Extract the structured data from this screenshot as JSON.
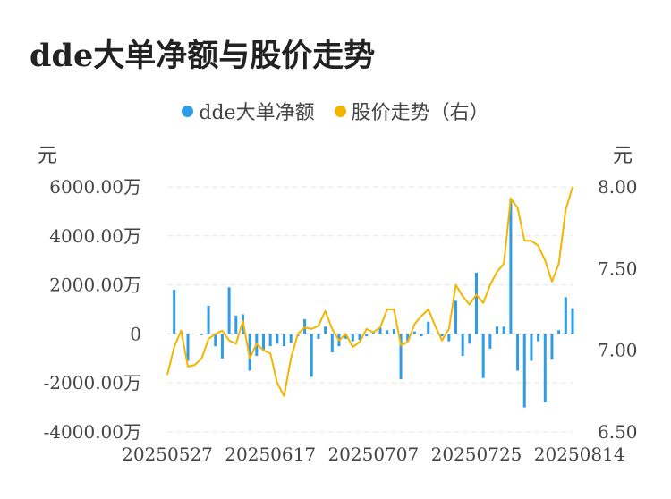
{
  "page_title": "dde大单净额与股价走势",
  "legend": [
    {
      "label": "dde大单净额",
      "color": "#2e9ce6"
    },
    {
      "label": "股价走势（右）",
      "color": "#f4b400"
    }
  ],
  "left_unit": "元",
  "right_unit": "元",
  "chart_data": {
    "type": "bar+line",
    "title": "dde大单净额与股价走势",
    "x_tick_labels": [
      "20250527",
      "20250617",
      "20250707",
      "20250725",
      "20250814"
    ],
    "x_tick_indices": [
      0,
      15,
      30,
      45,
      60
    ],
    "y_left": {
      "ylim": [
        -4000,
        6000
      ],
      "unit": "万",
      "tick_values": [
        -4000,
        -2000,
        0,
        2000,
        4000,
        6000
      ],
      "tick_labels": [
        "-4000.00万",
        "-2000.00万",
        "0",
        "2000.00万",
        "4000.00万",
        "6000.00万"
      ]
    },
    "y_right": {
      "ylim": [
        6.5,
        8.0
      ],
      "tick_values": [
        6.5,
        7.0,
        7.5,
        8.0
      ],
      "tick_labels": [
        "6.50",
        "7.00",
        "7.50",
        "8.00"
      ]
    },
    "grid": true,
    "legend_position": "top-center",
    "series": [
      {
        "name": "dde大单净额",
        "type": "bar",
        "color": "#2e9ce6",
        "axis": "left",
        "values": [
          0,
          1800,
          100,
          -1100,
          0,
          -50,
          1150,
          -500,
          -1000,
          1900,
          750,
          800,
          -1500,
          -900,
          -700,
          -500,
          -400,
          -500,
          -350,
          -100,
          600,
          -1750,
          -200,
          300,
          -750,
          -500,
          -200,
          -300,
          -250,
          -100,
          100,
          250,
          150,
          200,
          -1850,
          -300,
          100,
          -100,
          500,
          0,
          -100,
          -300,
          1350,
          -900,
          -400,
          2500,
          -1800,
          -600,
          300,
          300,
          5500,
          -1500,
          -3000,
          -1100,
          -300,
          -2800,
          -1050,
          150,
          1500,
          1050
        ]
      },
      {
        "name": "股价走势（右）",
        "type": "line",
        "color": "#f4b400",
        "axis": "right",
        "values": [
          6.85,
          7.02,
          7.12,
          6.9,
          6.91,
          6.95,
          7.07,
          7.1,
          7.12,
          7.06,
          7.04,
          7.18,
          6.95,
          7.04,
          7.0,
          6.98,
          6.8,
          6.72,
          6.95,
          7.1,
          7.14,
          7.13,
          7.15,
          7.24,
          7.13,
          7.06,
          7.1,
          7.02,
          7.05,
          7.13,
          7.11,
          7.14,
          7.25,
          7.25,
          7.03,
          7.05,
          7.16,
          7.21,
          7.25,
          7.15,
          7.06,
          7.13,
          7.4,
          7.33,
          7.28,
          7.34,
          7.29,
          7.4,
          7.48,
          7.53,
          7.93,
          7.87,
          7.67,
          7.67,
          7.64,
          7.55,
          7.42,
          7.53,
          7.86,
          8.0
        ]
      }
    ]
  }
}
